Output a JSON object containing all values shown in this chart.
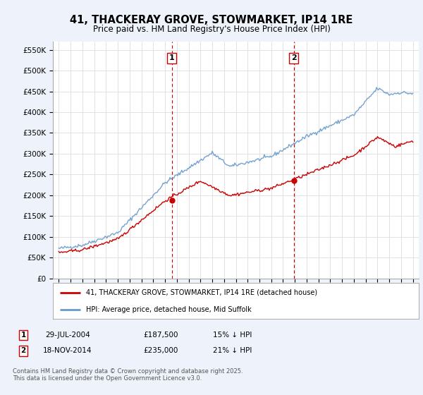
{
  "title": "41, THACKERAY GROVE, STOWMARKET, IP14 1RE",
  "subtitle": "Price paid vs. HM Land Registry's House Price Index (HPI)",
  "legend_line1": "41, THACKERAY GROVE, STOWMARKET, IP14 1RE (detached house)",
  "legend_line2": "HPI: Average price, detached house, Mid Suffolk",
  "note1_num": "1",
  "note1_date": "29-JUL-2004",
  "note1_price": "£187,500",
  "note1_hpi": "15% ↓ HPI",
  "note2_num": "2",
  "note2_date": "18-NOV-2014",
  "note2_price": "£235,000",
  "note2_hpi": "21% ↓ HPI",
  "footer": "Contains HM Land Registry data © Crown copyright and database right 2025.\nThis data is licensed under the Open Government Licence v3.0.",
  "vline1_x": 2004.58,
  "vline2_x": 2014.9,
  "sale1_x": 2004.58,
  "sale1_y": 187500,
  "sale2_x": 2014.9,
  "sale2_y": 235000,
  "price_line_color": "#cc0000",
  "hpi_line_color": "#6699cc",
  "vline_color": "#cc0000",
  "background_color": "#eef2fb",
  "plot_bg_color": "#ffffff",
  "ylim": [
    0,
    570000
  ],
  "xlim": [
    1994.5,
    2025.5
  ],
  "yticks": [
    0,
    50000,
    100000,
    150000,
    200000,
    250000,
    300000,
    350000,
    400000,
    450000,
    500000,
    550000
  ]
}
